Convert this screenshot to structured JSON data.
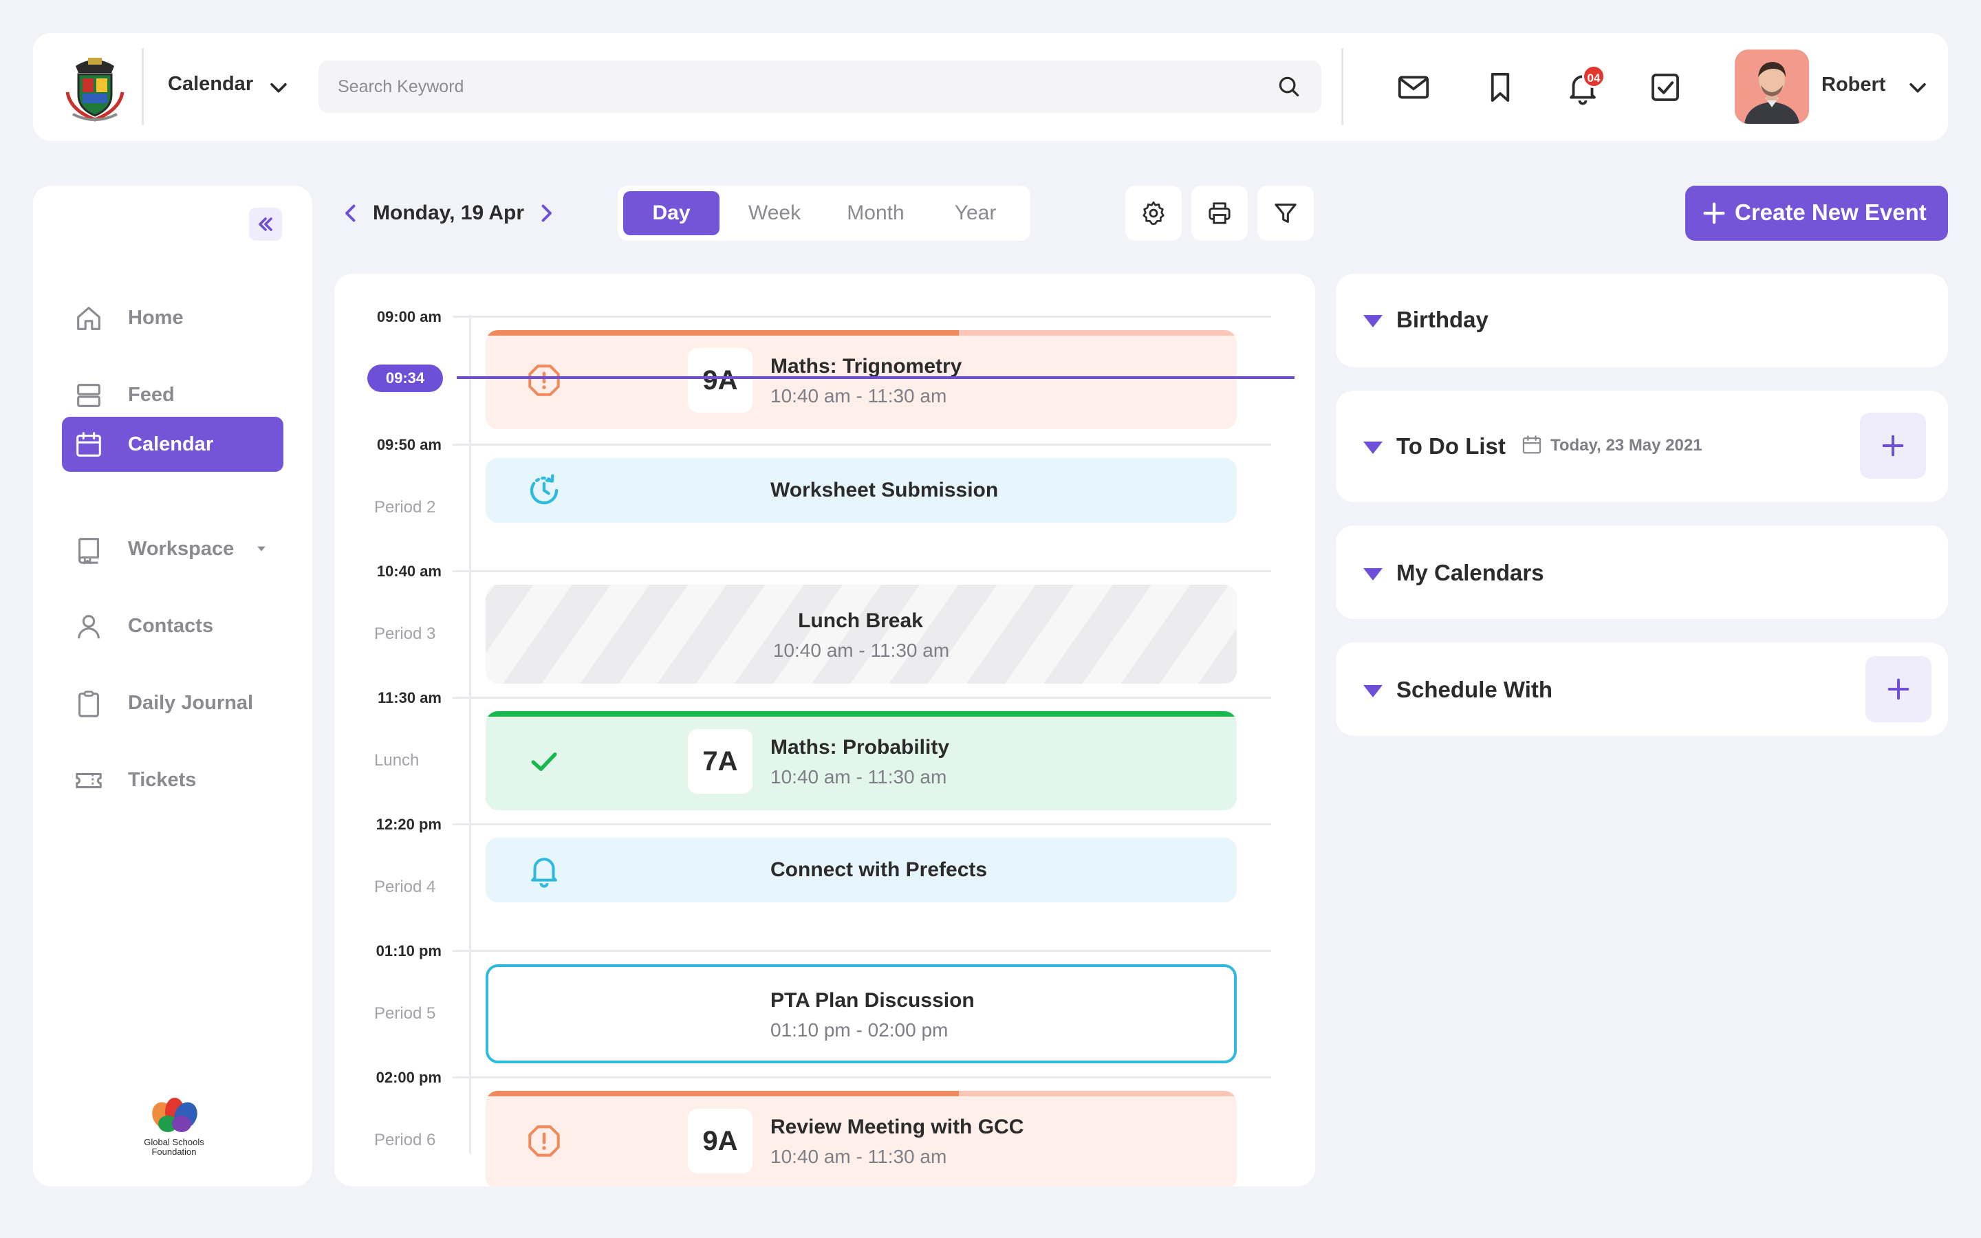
{
  "header": {
    "module_label": "Calendar",
    "search_placeholder": "Search Keyword",
    "notification_count": "04",
    "user_name": "Robert",
    "icons": [
      "school-crest-logo",
      "mail-icon",
      "bookmark-icon",
      "bell-icon",
      "checkbox-icon",
      "search-icon",
      "chevron-down-icon"
    ]
  },
  "sidebar": {
    "items": [
      {
        "label": "Home",
        "icon": "home-icon"
      },
      {
        "label": "Feed",
        "icon": "feed-icon"
      },
      {
        "label": "Calendar",
        "icon": "calendar-icon",
        "active": true
      },
      {
        "label": "Workspace",
        "icon": "book-icon",
        "has_submenu": true
      },
      {
        "label": "Contacts",
        "icon": "user-icon"
      },
      {
        "label": "Daily Journal",
        "icon": "clipboard-icon"
      },
      {
        "label": "Tickets",
        "icon": "ticket-icon"
      }
    ],
    "footer_logo_text": [
      "Global Schools",
      "Foundation"
    ]
  },
  "toolbar": {
    "date_label": "Monday, 19 Apr",
    "view_tabs": [
      "Day",
      "Week",
      "Month",
      "Year"
    ],
    "active_view": "Day",
    "create_label": "Create New Event"
  },
  "schedule": {
    "current_time": "09:34",
    "slots": [
      {
        "time": "09:00 am",
        "period": ""
      },
      {
        "time": "09:50 am",
        "period": "Period 2"
      },
      {
        "time": "10:40 am",
        "period": "Period 3"
      },
      {
        "time": "11:30 am",
        "period": "Lunch"
      },
      {
        "time": "12:20 pm",
        "period": "Period 4"
      },
      {
        "time": "01:10 pm",
        "period": "Period 5"
      },
      {
        "time": "02:00 pm",
        "period": "Period 6"
      }
    ],
    "events": [
      {
        "title": "Maths: Trignometry",
        "time": "10:40 am - 11:30 am",
        "class": "9A",
        "status_icon": "alert-octagon-icon",
        "style": "orange",
        "progress": 0.63
      },
      {
        "title": "Worksheet Submission",
        "time": "",
        "class": "",
        "status_icon": "clock-refresh-icon",
        "style": "blue"
      },
      {
        "title": "Lunch Break",
        "time": "10:40 am - 11:30 am",
        "class": "",
        "status_icon": "",
        "style": "striped"
      },
      {
        "title": "Maths: Probability",
        "time": "10:40 am - 11:30 am",
        "class": "7A",
        "status_icon": "check-icon",
        "style": "green",
        "progress": 1.0
      },
      {
        "title": "Connect with Prefects",
        "time": "",
        "class": "",
        "status_icon": "bell-icon",
        "style": "blue"
      },
      {
        "title": "PTA Plan Discussion",
        "time": "01:10 pm - 02:00 pm",
        "class": "",
        "status_icon": "",
        "style": "outline"
      },
      {
        "title": "Review Meeting with GCC",
        "time": "10:40 am - 11:30 am",
        "class": "9A",
        "status_icon": "alert-octagon-icon",
        "style": "orange",
        "progress": 0.63
      }
    ]
  },
  "panels": [
    {
      "title": "Birthday"
    },
    {
      "title": "To Do List",
      "date": "Today, 23 May 2021",
      "has_add": true
    },
    {
      "title": "My Calendars"
    },
    {
      "title": "Schedule With",
      "has_add": true
    }
  ],
  "colors": {
    "accent": "#7455D8",
    "background": "#F2F3F8",
    "orange": "#F08A5D",
    "green": "#19B84E",
    "cyan": "#2EB9DF",
    "notification": "#E2362F"
  }
}
